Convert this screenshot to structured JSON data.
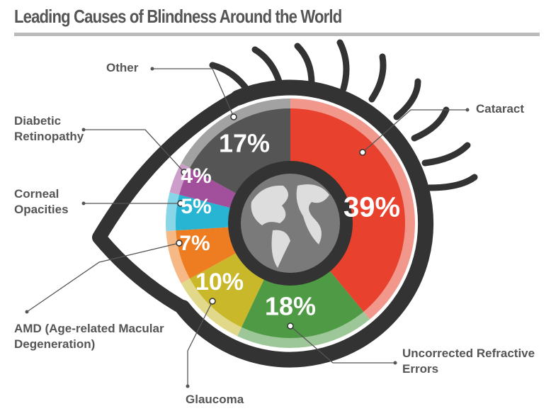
{
  "chart_data": {
    "type": "pie",
    "title": "Leading Causes of Blindness Around the World",
    "categories": [
      "Cataract",
      "Uncorrected Refractive Errors",
      "Glaucoma",
      "AMD (Age-related Macular Degeneration)",
      "Corneal Opacities",
      "Diabetic Retinopathy",
      "Other"
    ],
    "values": [
      39,
      18,
      10,
      7,
      5,
      4,
      17
    ],
    "value_labels": [
      "39%",
      "18%",
      "10%",
      "7%",
      "5%",
      "4%",
      "17%"
    ],
    "colors": [
      "#e8412e",
      "#4e9a45",
      "#c9b82a",
      "#ee7d22",
      "#27b5d3",
      "#a24f9c",
      "#555555"
    ]
  }
}
